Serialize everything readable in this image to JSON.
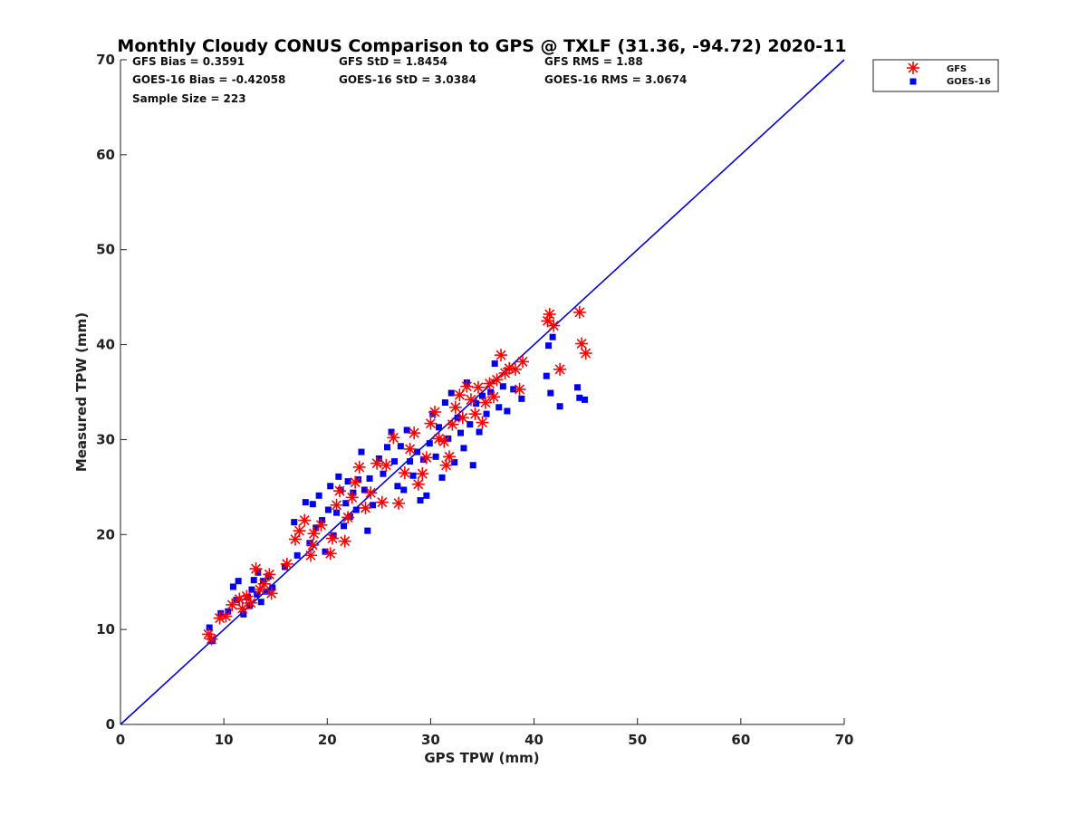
{
  "chart_data": {
    "type": "scatter",
    "title": "Monthly Cloudy CONUS Comparison to GPS @ TXLF (31.36, -94.72) 2020-11",
    "xlabel": "GPS TPW (mm)",
    "ylabel": "Measured TPW (mm)",
    "xlim": [
      0,
      70
    ],
    "ylim": [
      0,
      70
    ],
    "xticks": [
      0,
      10,
      20,
      30,
      40,
      50,
      60,
      70
    ],
    "yticks": [
      0,
      10,
      20,
      30,
      40,
      50,
      60,
      70
    ],
    "grid": false,
    "legend_position": "top-right",
    "stats": [
      {
        "text": "GFS Bias = 0.3591"
      },
      {
        "text": "GFS StD = 1.8454"
      },
      {
        "text": "GFS RMS = 1.88"
      },
      {
        "text": "GOES-16 Bias = -0.42058"
      },
      {
        "text": "GOES-16 StD = 3.0384"
      },
      {
        "text": "GOES-16 RMS = 3.0674"
      },
      {
        "text": "Sample Size = 223"
      }
    ],
    "reference_line": {
      "name": "1:1 line",
      "x": [
        0,
        70
      ],
      "y": [
        0,
        70
      ],
      "color": "#0000dd"
    },
    "series": [
      {
        "name": "GFS",
        "marker": "asterisk",
        "color": "#ff0000",
        "points": [
          [
            8.5,
            9.5
          ],
          [
            8.8,
            9.0
          ],
          [
            9.6,
            11.2
          ],
          [
            10.2,
            11.4
          ],
          [
            10.8,
            12.6
          ],
          [
            11.5,
            13.2
          ],
          [
            11.8,
            12.2
          ],
          [
            12.2,
            13.5
          ],
          [
            12.6,
            12.8
          ],
          [
            13.1,
            16.4
          ],
          [
            13.5,
            14.2
          ],
          [
            13.9,
            14.8
          ],
          [
            14.4,
            15.8
          ],
          [
            14.6,
            13.8
          ],
          [
            16.1,
            16.9
          ],
          [
            16.9,
            19.5
          ],
          [
            17.3,
            20.4
          ],
          [
            17.8,
            21.5
          ],
          [
            18.4,
            17.8
          ],
          [
            18.6,
            18.9
          ],
          [
            18.7,
            20.1
          ],
          [
            19.4,
            21.0
          ],
          [
            20.3,
            18.0
          ],
          [
            20.5,
            19.6
          ],
          [
            20.9,
            23.1
          ],
          [
            21.2,
            24.6
          ],
          [
            21.7,
            19.3
          ],
          [
            22.0,
            21.8
          ],
          [
            22.4,
            23.9
          ],
          [
            22.7,
            25.5
          ],
          [
            23.1,
            27.1
          ],
          [
            23.7,
            22.8
          ],
          [
            24.2,
            24.4
          ],
          [
            24.8,
            27.5
          ],
          [
            25.3,
            23.4
          ],
          [
            25.7,
            27.3
          ],
          [
            26.4,
            30.2
          ],
          [
            26.9,
            23.3
          ],
          [
            27.5,
            26.5
          ],
          [
            28.0,
            29.0
          ],
          [
            28.4,
            30.7
          ],
          [
            28.8,
            25.3
          ],
          [
            29.2,
            26.4
          ],
          [
            29.6,
            28.1
          ],
          [
            30.0,
            31.7
          ],
          [
            30.4,
            32.9
          ],
          [
            30.8,
            30.1
          ],
          [
            31.3,
            29.8
          ],
          [
            31.5,
            27.3
          ],
          [
            31.8,
            28.2
          ],
          [
            32.1,
            31.6
          ],
          [
            32.4,
            33.4
          ],
          [
            32.8,
            34.7
          ],
          [
            33.1,
            32.3
          ],
          [
            33.5,
            35.6
          ],
          [
            33.9,
            34.2
          ],
          [
            34.3,
            32.7
          ],
          [
            34.6,
            35.5
          ],
          [
            35.0,
            31.8
          ],
          [
            35.3,
            33.9
          ],
          [
            35.7,
            35.9
          ],
          [
            36.1,
            34.5
          ],
          [
            36.4,
            36.3
          ],
          [
            36.8,
            38.9
          ],
          [
            37.2,
            37.0
          ],
          [
            37.6,
            37.5
          ],
          [
            38.2,
            37.4
          ],
          [
            38.6,
            35.3
          ],
          [
            38.9,
            38.2
          ],
          [
            41.3,
            42.5
          ],
          [
            41.5,
            43.2
          ],
          [
            41.9,
            42.0
          ],
          [
            42.5,
            37.4
          ],
          [
            44.4,
            43.4
          ],
          [
            44.6,
            40.1
          ],
          [
            45.0,
            39.1
          ]
        ]
      },
      {
        "name": "GOES-16",
        "marker": "square",
        "color": "#0000ee",
        "points": [
          [
            8.6,
            10.2
          ],
          [
            8.9,
            8.8
          ],
          [
            9.7,
            11.7
          ],
          [
            10.4,
            11.9
          ],
          [
            10.9,
            14.5
          ],
          [
            11.2,
            13.1
          ],
          [
            11.4,
            15.1
          ],
          [
            11.9,
            11.6
          ],
          [
            12.3,
            13.4
          ],
          [
            12.5,
            12.5
          ],
          [
            12.7,
            14.2
          ],
          [
            12.9,
            15.2
          ],
          [
            13.2,
            13.7
          ],
          [
            13.3,
            16.0
          ],
          [
            13.6,
            12.9
          ],
          [
            13.8,
            15.1
          ],
          [
            14.1,
            14.0
          ],
          [
            14.3,
            15.6
          ],
          [
            14.7,
            14.4
          ],
          [
            15.9,
            16.6
          ],
          [
            16.8,
            21.3
          ],
          [
            17.1,
            17.8
          ],
          [
            17.9,
            23.4
          ],
          [
            18.3,
            19.1
          ],
          [
            18.6,
            23.2
          ],
          [
            18.9,
            20.7
          ],
          [
            19.2,
            24.1
          ],
          [
            19.5,
            21.5
          ],
          [
            19.8,
            18.2
          ],
          [
            20.1,
            22.6
          ],
          [
            20.3,
            25.1
          ],
          [
            20.6,
            19.9
          ],
          [
            20.9,
            22.3
          ],
          [
            21.1,
            26.1
          ],
          [
            21.3,
            24.7
          ],
          [
            21.6,
            20.9
          ],
          [
            21.8,
            23.3
          ],
          [
            22.0,
            25.6
          ],
          [
            22.2,
            21.9
          ],
          [
            22.5,
            24.4
          ],
          [
            22.8,
            22.6
          ],
          [
            23.0,
            25.8
          ],
          [
            23.3,
            28.7
          ],
          [
            23.6,
            24.7
          ],
          [
            23.9,
            20.4
          ],
          [
            24.1,
            25.9
          ],
          [
            24.4,
            23.1
          ],
          [
            25.0,
            28.0
          ],
          [
            25.4,
            26.4
          ],
          [
            25.8,
            29.2
          ],
          [
            26.2,
            30.8
          ],
          [
            26.5,
            27.7
          ],
          [
            26.8,
            25.1
          ],
          [
            27.1,
            29.3
          ],
          [
            27.4,
            24.7
          ],
          [
            27.7,
            31.0
          ],
          [
            28.0,
            27.7
          ],
          [
            28.3,
            26.2
          ],
          [
            28.7,
            28.7
          ],
          [
            29.0,
            23.6
          ],
          [
            29.3,
            27.9
          ],
          [
            29.6,
            24.1
          ],
          [
            29.9,
            29.6
          ],
          [
            30.2,
            32.7
          ],
          [
            30.5,
            28.2
          ],
          [
            30.8,
            31.3
          ],
          [
            31.1,
            26.0
          ],
          [
            31.4,
            33.9
          ],
          [
            31.7,
            30.1
          ],
          [
            32.0,
            34.9
          ],
          [
            32.3,
            27.6
          ],
          [
            32.6,
            32.3
          ],
          [
            32.9,
            30.7
          ],
          [
            33.2,
            29.1
          ],
          [
            33.5,
            36.0
          ],
          [
            33.8,
            31.6
          ],
          [
            34.1,
            27.3
          ],
          [
            34.4,
            33.8
          ],
          [
            34.7,
            30.8
          ],
          [
            35.0,
            34.6
          ],
          [
            35.4,
            32.7
          ],
          [
            35.8,
            35.0
          ],
          [
            36.2,
            38.0
          ],
          [
            36.6,
            33.4
          ],
          [
            37.0,
            35.6
          ],
          [
            37.4,
            33.0
          ],
          [
            38.0,
            35.3
          ],
          [
            38.8,
            34.3
          ],
          [
            41.2,
            36.7
          ],
          [
            41.4,
            39.9
          ],
          [
            41.6,
            34.9
          ],
          [
            41.8,
            40.8
          ],
          [
            42.5,
            33.5
          ],
          [
            44.2,
            35.5
          ],
          [
            44.4,
            34.4
          ],
          [
            44.9,
            34.2
          ]
        ]
      }
    ]
  }
}
